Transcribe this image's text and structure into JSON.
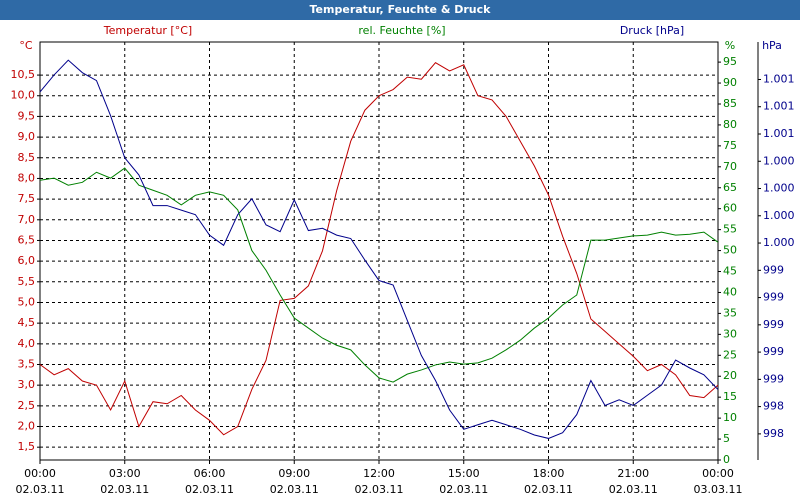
{
  "chart_data": {
    "type": "line",
    "title": "Temperatur, Feuchte & Druck",
    "y_label": "°C",
    "y2_label": "%",
    "y3_label": "hPa",
    "grid": true,
    "x": [
      0,
      0.5,
      1,
      1.5,
      2,
      2.5,
      3,
      3.5,
      4,
      4.5,
      5,
      5.5,
      6,
      6.5,
      7,
      7.5,
      8,
      8.5,
      9,
      9.5,
      10,
      10.5,
      11,
      11.5,
      12,
      12.5,
      13,
      13.5,
      14,
      14.5,
      15,
      15.5,
      16,
      16.5,
      17,
      17.5,
      18,
      18.5,
      19,
      19.5,
      20,
      20.5,
      21,
      21.5,
      22,
      22.5,
      23,
      23.5,
      24
    ],
    "xlim": [
      0,
      24
    ],
    "xticks": [
      {
        "value": 0,
        "label": "00:00"
      },
      {
        "value": 3,
        "label": "03:00"
      },
      {
        "value": 6,
        "label": "06:00"
      },
      {
        "value": 9,
        "label": "09:00"
      },
      {
        "value": 12,
        "label": "12:00"
      },
      {
        "value": 15,
        "label": "15:00"
      },
      {
        "value": 18,
        "label": "18:00"
      },
      {
        "value": 21,
        "label": "21:00"
      },
      {
        "value": 24,
        "label": "00:00"
      }
    ],
    "xtick_dates": [
      "02.03.11",
      "02.03.11",
      "02.03.11",
      "02.03.11",
      "02.03.11",
      "02.03.11",
      "02.03.11",
      "02.03.11",
      "03.03.11"
    ],
    "ylim": [
      1.19,
      11.3
    ],
    "yticks": [
      {
        "value": 1.5,
        "label": "1,5"
      },
      {
        "value": 2,
        "label": "2,0"
      },
      {
        "value": 2.5,
        "label": "2,5"
      },
      {
        "value": 3,
        "label": "3,0"
      },
      {
        "value": 3.5,
        "label": "3,5"
      },
      {
        "value": 4,
        "label": "4,0"
      },
      {
        "value": 4.5,
        "label": "4,5"
      },
      {
        "value": 5,
        "label": "5,0"
      },
      {
        "value": 5.5,
        "label": "5,5"
      },
      {
        "value": 6,
        "label": "6,0"
      },
      {
        "value": 6.5,
        "label": "6,5"
      },
      {
        "value": 7,
        "label": "7,0"
      },
      {
        "value": 7.5,
        "label": "7,5"
      },
      {
        "value": 8,
        "label": "8,0"
      },
      {
        "value": 8.5,
        "label": "8,5"
      },
      {
        "value": 9,
        "label": "9,0"
      },
      {
        "value": 9.5,
        "label": "9,5"
      },
      {
        "value": 10,
        "label": "10,0"
      },
      {
        "value": 10.5,
        "label": "10,5"
      }
    ],
    "y2lim": [
      0,
      99.8
    ],
    "y2ticks": [
      0,
      5,
      10,
      15,
      20,
      25,
      30,
      35,
      40,
      45,
      50,
      55,
      60,
      65,
      70,
      75,
      80,
      85,
      90,
      95
    ],
    "y3lim": [
      997.79,
      1001.47
    ],
    "y3ticks": [
      {
        "value": 998.02,
        "label": "998"
      },
      {
        "value": 998.26,
        "label": "998"
      },
      {
        "value": 998.5,
        "label": "999"
      },
      {
        "value": 998.74,
        "label": "999"
      },
      {
        "value": 998.98,
        "label": "999"
      },
      {
        "value": 999.22,
        "label": "999"
      },
      {
        "value": 999.46,
        "label": "999"
      },
      {
        "value": 999.7,
        "label": "1.000"
      },
      {
        "value": 999.94,
        "label": "1.000"
      },
      {
        "value": 1000.18,
        "label": "1.000"
      },
      {
        "value": 1000.42,
        "label": "1.000"
      },
      {
        "value": 1000.66,
        "label": "1.001"
      },
      {
        "value": 1000.9,
        "label": "1.001"
      },
      {
        "value": 1001.14,
        "label": "1.001"
      }
    ],
    "series": [
      {
        "name": "Temperatur [°C]",
        "color": "#c00000",
        "axis": "y",
        "values": [
          3.5,
          3.25,
          3.4,
          3.1,
          3.0,
          2.4,
          3.1,
          2.0,
          2.6,
          2.55,
          2.75,
          2.4,
          2.15,
          1.8,
          2.0,
          2.9,
          3.6,
          5.05,
          5.1,
          5.4,
          6.25,
          7.7,
          8.9,
          9.65,
          10.0,
          10.15,
          10.45,
          10.4,
          10.8,
          10.6,
          10.75,
          10.0,
          9.9,
          9.5,
          8.9,
          8.3,
          7.6,
          6.6,
          5.7,
          4.6,
          4.3,
          4.0,
          3.7,
          3.35,
          3.5,
          3.25,
          2.75,
          2.7,
          3.0
        ]
      },
      {
        "name": "rel. Feuchte [%]",
        "color": "#008000",
        "axis": "y2",
        "values": [
          66.8,
          67.3,
          65.6,
          66.3,
          68.7,
          67.3,
          69.7,
          65.6,
          64.4,
          63.2,
          60.9,
          63.2,
          64,
          63.2,
          59.7,
          50,
          45.3,
          39.4,
          33.9,
          31.5,
          29.1,
          27.4,
          26.3,
          22.7,
          19.6,
          18.6,
          20.5,
          21.5,
          22.7,
          23.4,
          22.9,
          23.2,
          24.3,
          26.3,
          28.6,
          31.5,
          33.9,
          37,
          39.4,
          52.5,
          52.5,
          53,
          53.5,
          53.7,
          54.4,
          53.7,
          53.9,
          54.4,
          52
        ]
      },
      {
        "name": "Druck [hPa]",
        "color": "#00008b",
        "axis": "y3",
        "values": [
          1001.03,
          1001.18,
          1001.31,
          1001.2,
          1001.13,
          1000.82,
          1000.45,
          1000.3,
          1000.03,
          1000.03,
          999.99,
          999.95,
          999.77,
          999.68,
          999.95,
          1000.09,
          999.86,
          999.8,
          1000.08,
          999.81,
          999.83,
          999.77,
          999.74,
          999.55,
          999.37,
          999.33,
          999.02,
          998.71,
          998.49,
          998.23,
          998.06,
          998.1,
          998.14,
          998.1,
          998.06,
          998.01,
          997.98,
          998.03,
          998.19,
          998.49,
          998.27,
          998.32,
          998.27,
          998.36,
          998.45,
          998.67,
          998.6,
          998.54,
          998.41
        ]
      }
    ]
  }
}
